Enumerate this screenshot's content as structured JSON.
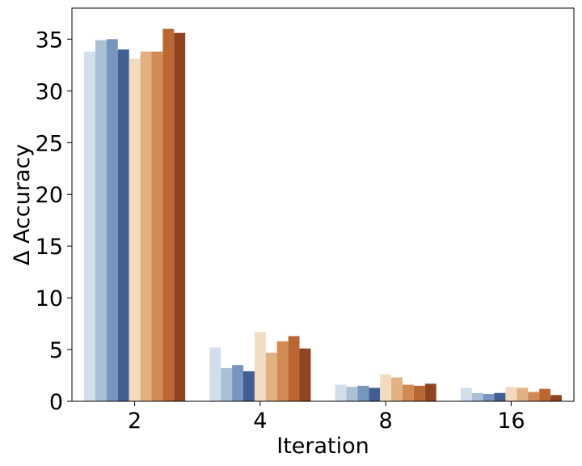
{
  "chart_data": {
    "type": "bar",
    "title": "",
    "xlabel": "Iteration",
    "ylabel": "Δ Accuracy",
    "categories": [
      "2",
      "4",
      "8",
      "16"
    ],
    "ylim": [
      0,
      38
    ],
    "yticks": [
      0,
      5,
      10,
      15,
      20,
      25,
      30,
      35
    ],
    "grid": false,
    "legend": "none",
    "series": [
      {
        "color": "#d3deeb",
        "values": [
          33.8,
          5.2,
          1.6,
          1.3
        ]
      },
      {
        "color": "#a9c0d6",
        "values": [
          34.9,
          3.2,
          1.4,
          0.8
        ]
      },
      {
        "color": "#7896bd",
        "values": [
          35.0,
          3.5,
          1.5,
          0.7
        ]
      },
      {
        "color": "#415f92",
        "values": [
          34.0,
          2.9,
          1.3,
          0.8
        ]
      },
      {
        "color": "#f1dcc0",
        "values": [
          33.1,
          6.7,
          2.6,
          1.4
        ]
      },
      {
        "color": "#e2b182",
        "values": [
          33.8,
          4.7,
          2.3,
          1.3
        ]
      },
      {
        "color": "#d08b55",
        "values": [
          33.8,
          5.8,
          1.6,
          0.9
        ]
      },
      {
        "color": "#ba6732",
        "values": [
          36.0,
          6.3,
          1.5,
          1.2
        ]
      },
      {
        "color": "#8f4522",
        "values": [
          35.6,
          5.1,
          1.7,
          0.6
        ]
      }
    ]
  }
}
